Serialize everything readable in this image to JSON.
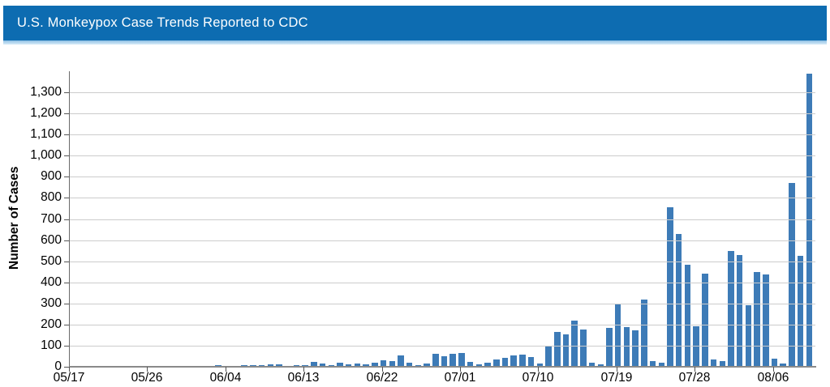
{
  "header": {
    "title": "U.S. Monkeypox Case Trends Reported to CDC",
    "bg_color": "#0d6cb1",
    "accent_strip_top": "#8fc0e4",
    "accent_strip_bottom": "#d9ecf8"
  },
  "chart_data": {
    "type": "bar",
    "title": "U.S. Monkeypox Case Trends Reported to CDC",
    "xlabel": "",
    "ylabel": "Number of Cases",
    "ylim": [
      0,
      1400
    ],
    "ytick_interval": 100,
    "ytick_labels": [
      "0",
      "100",
      "200",
      "300",
      "400",
      "500",
      "600",
      "700",
      "800",
      "900",
      "1,000",
      "1,100",
      "1,200",
      "1,300"
    ],
    "grid": true,
    "legend": "none",
    "bar_color": "#3d7bb7",
    "axis_color": "#6b6b6b",
    "grid_color": "#cccccc",
    "xticks": [
      {
        "day_index": 0,
        "label": "05/17"
      },
      {
        "day_index": 9,
        "label": "05/26"
      },
      {
        "day_index": 18,
        "label": "06/04"
      },
      {
        "day_index": 27,
        "label": "06/13"
      },
      {
        "day_index": 36,
        "label": "06/22"
      },
      {
        "day_index": 45,
        "label": "07/01"
      },
      {
        "day_index": 54,
        "label": "07/10"
      },
      {
        "day_index": 63,
        "label": "07/19"
      },
      {
        "day_index": 72,
        "label": "07/28"
      },
      {
        "day_index": 81,
        "label": "08/06"
      }
    ],
    "dates": [
      "05/17",
      "05/18",
      "05/19",
      "05/20",
      "05/21",
      "05/22",
      "05/23",
      "05/24",
      "05/25",
      "05/26",
      "05/27",
      "05/28",
      "05/29",
      "05/30",
      "05/31",
      "06/01",
      "06/02",
      "06/03",
      "06/04",
      "06/05",
      "06/06",
      "06/07",
      "06/08",
      "06/09",
      "06/10",
      "06/11",
      "06/12",
      "06/13",
      "06/14",
      "06/15",
      "06/16",
      "06/17",
      "06/18",
      "06/19",
      "06/20",
      "06/21",
      "06/22",
      "06/23",
      "06/24",
      "06/25",
      "06/26",
      "06/27",
      "06/28",
      "06/29",
      "06/30",
      "07/01",
      "07/02",
      "07/03",
      "07/04",
      "07/05",
      "07/06",
      "07/07",
      "07/08",
      "07/09",
      "07/10",
      "07/11",
      "07/12",
      "07/13",
      "07/14",
      "07/15",
      "07/16",
      "07/17",
      "07/18",
      "07/19",
      "07/20",
      "07/21",
      "07/22",
      "07/23",
      "07/24",
      "07/25",
      "07/26",
      "07/27",
      "07/28",
      "07/29",
      "07/30",
      "07/31",
      "08/01",
      "08/02",
      "08/03",
      "08/04",
      "08/05",
      "08/06",
      "08/07",
      "08/08",
      "08/09",
      "08/10"
    ],
    "values": [
      1,
      1,
      2,
      3,
      2,
      3,
      4,
      2,
      2,
      3,
      4,
      2,
      1,
      2,
      4,
      3,
      4,
      9,
      5,
      4,
      6,
      6,
      8,
      10,
      12,
      5,
      6,
      8,
      22,
      15,
      8,
      18,
      11,
      14,
      10,
      20,
      32,
      25,
      54,
      19,
      8,
      15,
      63,
      48,
      61,
      65,
      23,
      11,
      19,
      35,
      42,
      54,
      56,
      46,
      15,
      98,
      165,
      155,
      218,
      175,
      18,
      12,
      185,
      297,
      187,
      174,
      318,
      27,
      20,
      755,
      628,
      482,
      193,
      443,
      35,
      25,
      548,
      530,
      293,
      447,
      437,
      40,
      14,
      870,
      527,
      1388
    ]
  }
}
